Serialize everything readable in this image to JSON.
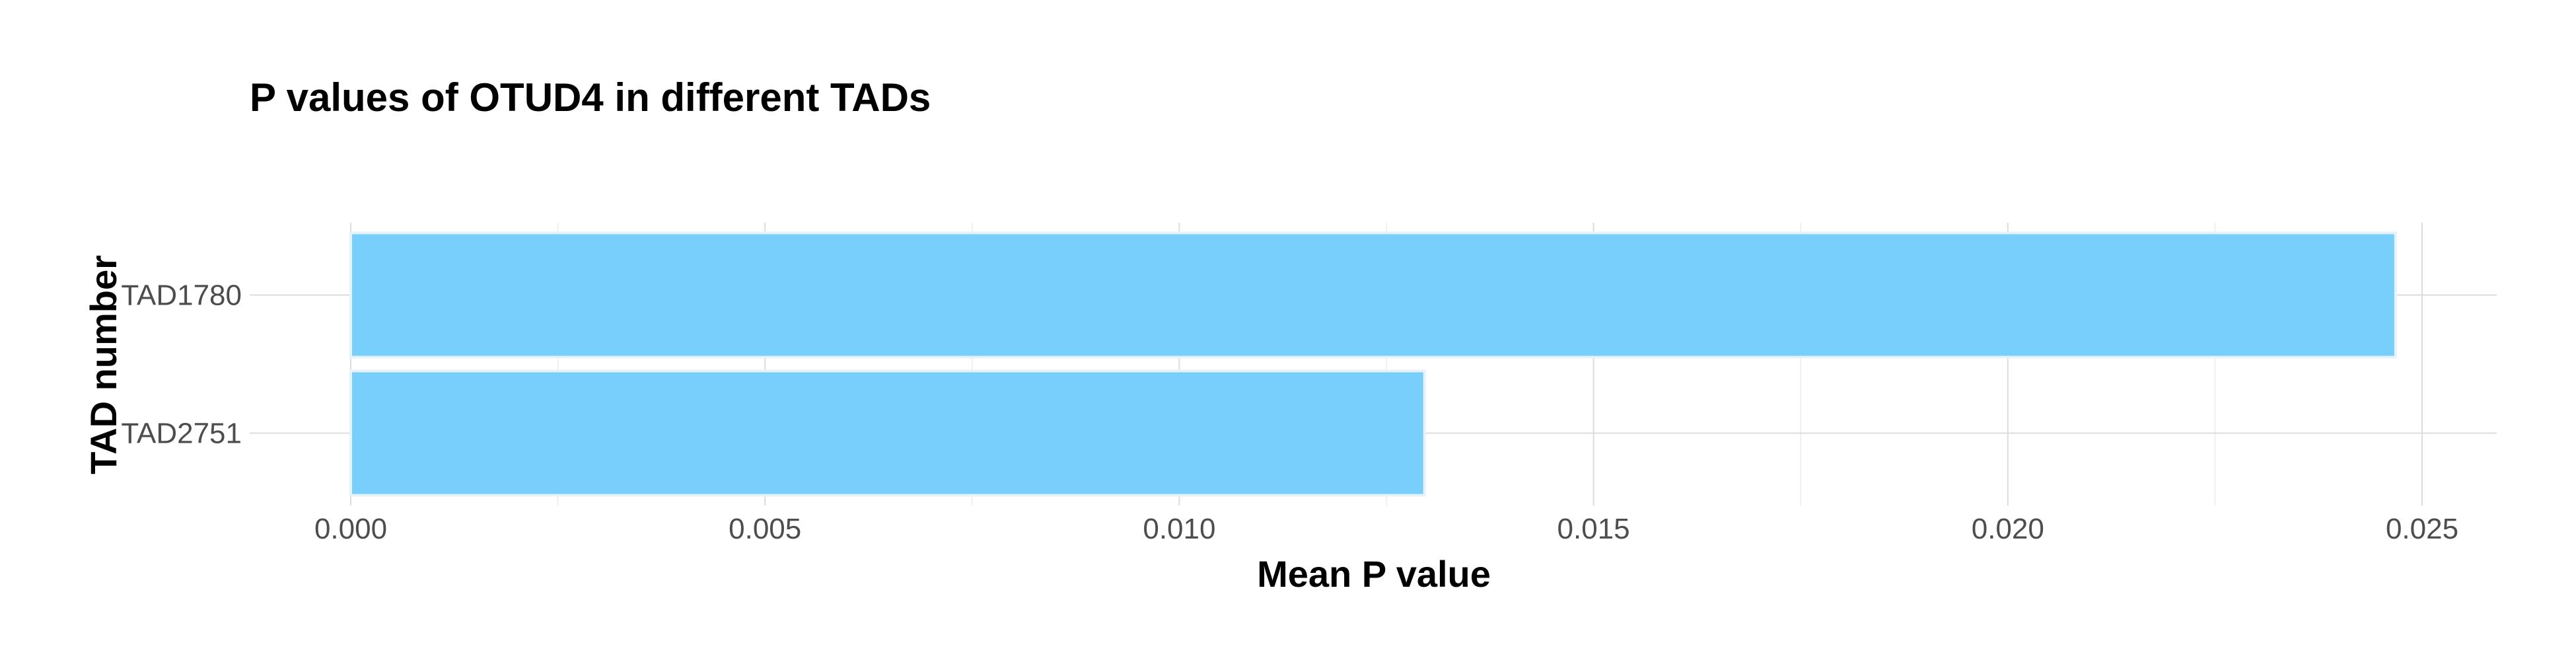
{
  "chart_data": {
    "type": "bar",
    "orientation": "horizontal",
    "title": "P values of OTUD4 in different TADs",
    "xlabel": "Mean P value",
    "ylabel": "TAD number",
    "categories": [
      "TAD1780",
      "TAD2751"
    ],
    "values": [
      0.02468,
      0.01296
    ],
    "xlim": [
      0,
      0.025
    ],
    "xticks": [
      "0.000",
      "0.005",
      "0.010",
      "0.015",
      "0.020",
      "0.025"
    ],
    "grid": true,
    "bar_color": "#75CEFC"
  }
}
